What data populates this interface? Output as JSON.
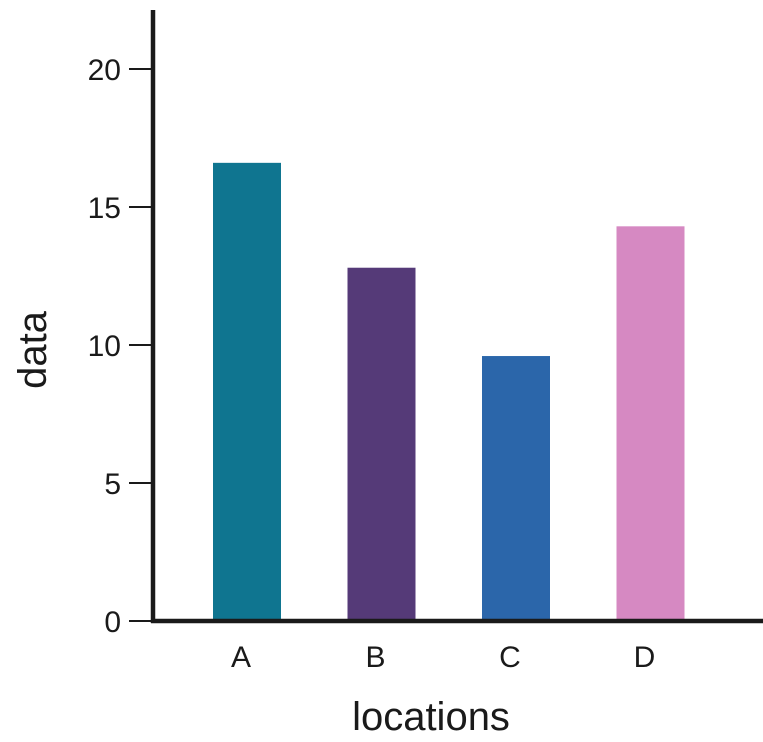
{
  "chart_data": {
    "type": "bar",
    "title": "",
    "xlabel": "locations",
    "ylabel": "data",
    "categories": [
      "A",
      "B",
      "C",
      "D"
    ],
    "values": [
      16.6,
      12.8,
      9.6,
      14.3
    ],
    "colors": [
      "#0f7590",
      "#553a78",
      "#2b66aa",
      "#d689c2"
    ],
    "ylim": [
      0,
      22
    ],
    "yticks": [
      0,
      5,
      10,
      15,
      20
    ],
    "grid": false,
    "legend": "none"
  }
}
